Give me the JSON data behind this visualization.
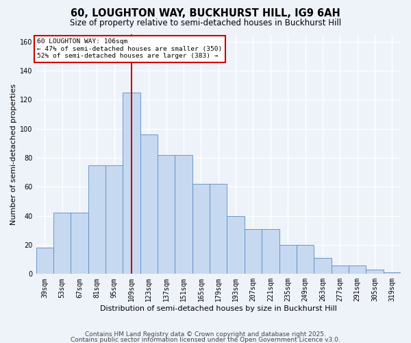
{
  "title": "60, LOUGHTON WAY, BUCKHURST HILL, IG9 6AH",
  "subtitle": "Size of property relative to semi-detached houses in Buckhurst Hill",
  "xlabel": "Distribution of semi-detached houses by size in Buckhurst Hill",
  "ylabel": "Number of semi-detached properties",
  "annotation_line1": "60 LOUGHTON WAY: 106sqm",
  "annotation_line2": "← 47% of semi-detached houses are smaller (350)",
  "annotation_line3": "52% of semi-detached houses are larger (383) →",
  "footer_line1": "Contains HM Land Registry data © Crown copyright and database right 2025.",
  "footer_line2": "Contains public sector information licensed under the Open Government Licence v3.0.",
  "bar_color": "#c6d9f0",
  "bar_edge_color": "#5b8ac5",
  "bg_color": "#eef2f9",
  "grid_color": "#ffffff",
  "red_line_x": 109,
  "categories": [
    "39sqm",
    "53sqm",
    "67sqm",
    "81sqm",
    "95sqm",
    "109sqm",
    "123sqm",
    "137sqm",
    "151sqm",
    "165sqm",
    "179sqm",
    "193sqm",
    "207sqm",
    "221sqm",
    "235sqm",
    "249sqm",
    "263sqm",
    "277sqm",
    "291sqm",
    "305sqm",
    "319sqm"
  ],
  "bin_edges": [
    32,
    46,
    60,
    74,
    88,
    102,
    116,
    130,
    144,
    158,
    172,
    186,
    200,
    214,
    228,
    242,
    256,
    270,
    284,
    298,
    312,
    326
  ],
  "values": [
    18,
    42,
    42,
    75,
    75,
    125,
    96,
    82,
    82,
    62,
    62,
    40,
    31,
    31,
    20,
    20,
    11,
    6,
    6,
    3,
    1
  ],
  "ylim": [
    0,
    165
  ],
  "yticks": [
    0,
    20,
    40,
    60,
    80,
    100,
    120,
    140,
    160
  ],
  "title_fontsize": 10.5,
  "subtitle_fontsize": 8.5,
  "label_fontsize": 8,
  "tick_fontsize": 7,
  "footer_fontsize": 6.5
}
